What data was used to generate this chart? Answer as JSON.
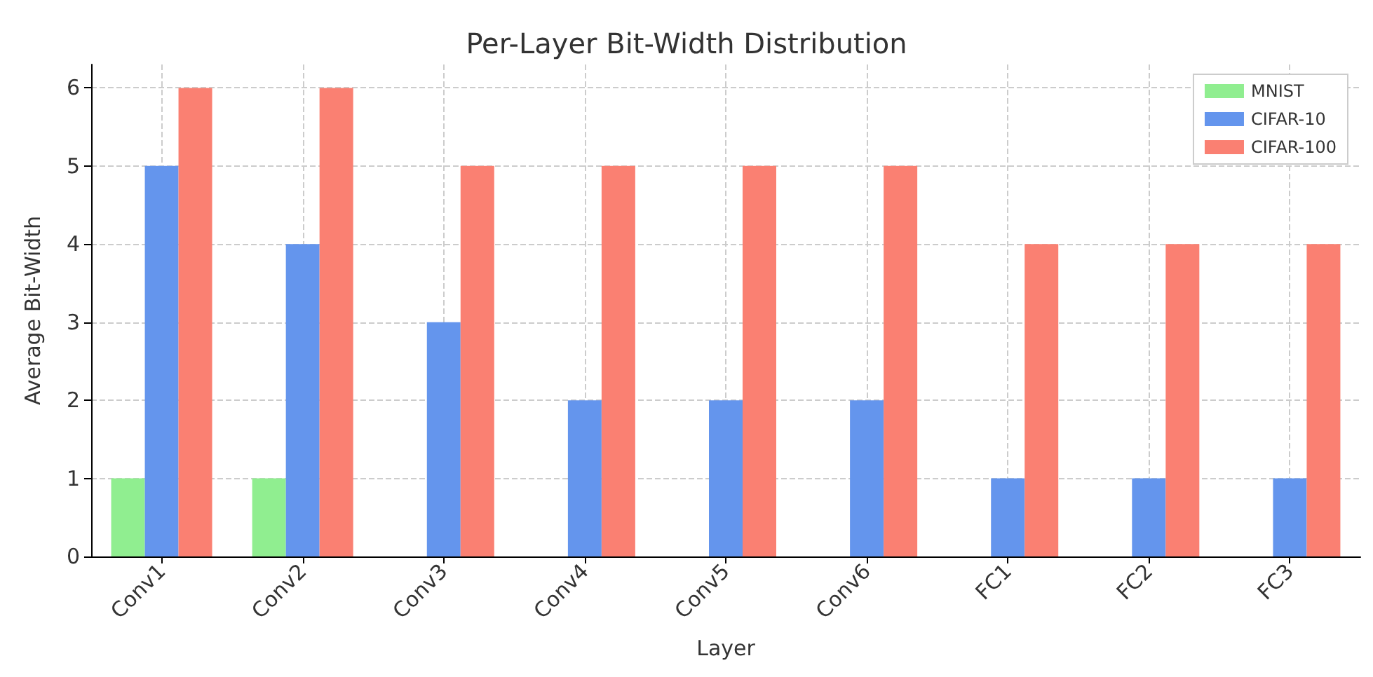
{
  "chart_data": {
    "type": "bar",
    "title": "Per-Layer Bit-Width Distribution",
    "xlabel": "Layer",
    "ylabel": "Average Bit-Width",
    "categories": [
      "Conv1",
      "Conv2",
      "Conv3",
      "Conv4",
      "Conv5",
      "Conv6",
      "FC1",
      "FC2",
      "FC3"
    ],
    "series": [
      {
        "name": "MNIST",
        "color": "#90ee90",
        "values": [
          1,
          1,
          0,
          0,
          0,
          0,
          0,
          0,
          0
        ]
      },
      {
        "name": "CIFAR-10",
        "color": "#6495ed",
        "values": [
          5,
          4,
          3,
          2,
          2,
          2,
          1,
          1,
          1
        ]
      },
      {
        "name": "CIFAR-100",
        "color": "#fa8072",
        "values": [
          6,
          6,
          5,
          5,
          5,
          5,
          4,
          4,
          4
        ]
      }
    ],
    "ylim": [
      0,
      6.3
    ],
    "yticks": [
      0,
      1,
      2,
      3,
      4,
      5,
      6
    ],
    "grid": true,
    "legend": "top right"
  }
}
